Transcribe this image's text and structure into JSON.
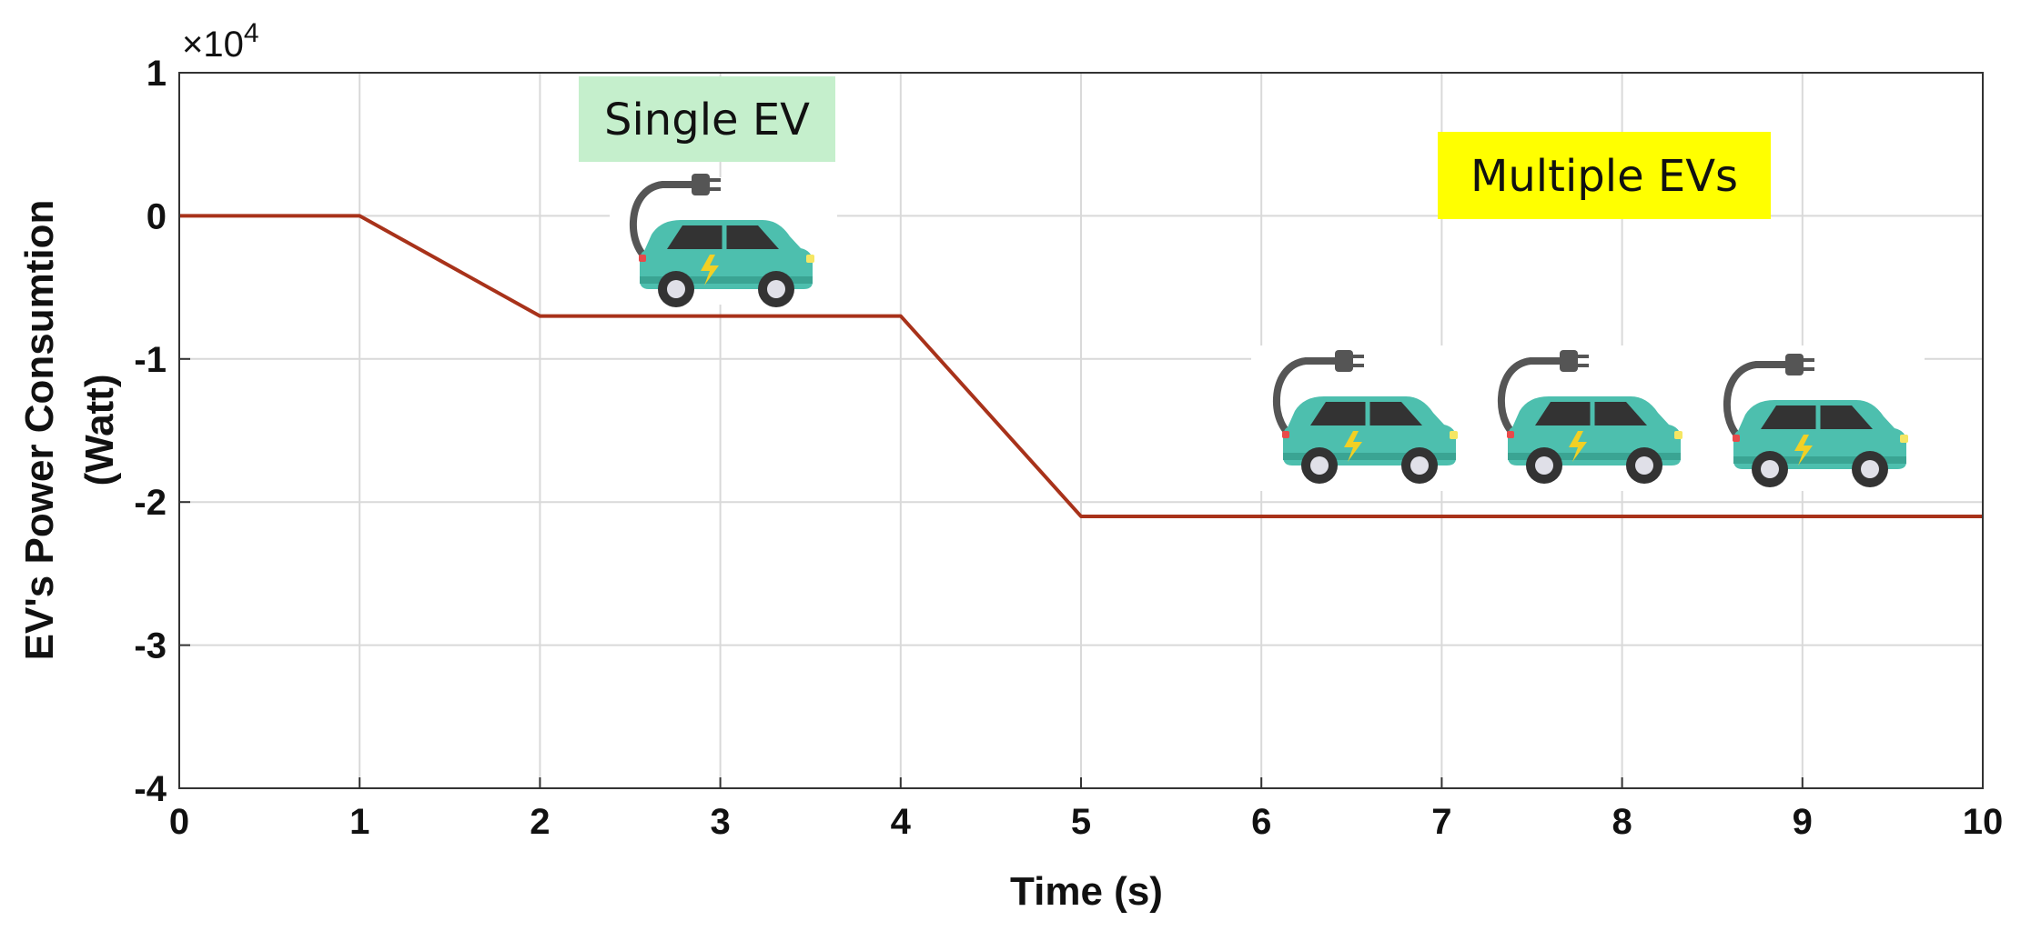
{
  "chart_data": {
    "type": "line",
    "xlabel": "Time (s)",
    "ylabel_lines": [
      "EV's Power Consumtion",
      "(Watt)"
    ],
    "y_exponent_base": "×10",
    "y_exponent_power": "4",
    "xlim": [
      0,
      10
    ],
    "ylim": [
      -4,
      1
    ],
    "y_scale_factor": 10000,
    "x_ticks": [
      0,
      1,
      2,
      3,
      4,
      5,
      6,
      7,
      8,
      9,
      10
    ],
    "y_ticks": [
      1,
      0,
      -1,
      -2,
      -3,
      -4
    ],
    "grid": true,
    "series": [
      {
        "x": [
          0,
          1,
          2,
          4,
          5,
          10
        ],
        "y": [
          0,
          0,
          -0.7,
          -0.7,
          -2.1,
          -2.1
        ]
      }
    ],
    "annotations": [
      {
        "text": "Single EV",
        "background": "#c5efcc"
      },
      {
        "text": "Multiple EVs",
        "background": "#ffff00"
      }
    ]
  },
  "colors": {
    "line": "#a8321a",
    "grid": "#d9d9d9",
    "car_body": "#4dbfae",
    "car_window": "#333333",
    "plug": "#555555"
  },
  "icons": [
    "ev-charging-car-icon"
  ]
}
